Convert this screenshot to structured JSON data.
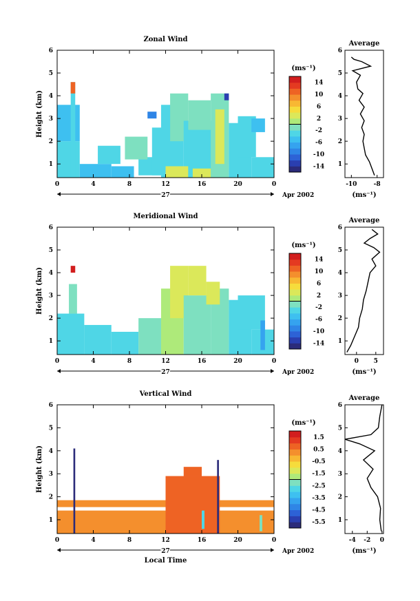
{
  "chart_data": [
    {
      "type": "heatmap",
      "title": "Zonal Wind",
      "ylabel": "Height (km)",
      "yticks": [
        "1",
        "2",
        "3",
        "4",
        "5",
        "6"
      ],
      "ylim": [
        0.4,
        6.0
      ],
      "xticks": [
        "0",
        "4",
        "8",
        "12",
        "16",
        "20",
        "0"
      ],
      "xlim": [
        0,
        24
      ],
      "day_label": "27",
      "month_label": "Apr 2002",
      "colorbar": {
        "unit": "(ms⁻¹)",
        "ticks": [
          "14",
          "10",
          "6",
          "2",
          "-2",
          "-6",
          "-10",
          "-14"
        ],
        "range": [
          -16,
          16
        ]
      },
      "cells": [
        [
          0,
          2.5,
          0.4,
          2.0,
          -4
        ],
        [
          0,
          2.5,
          2.0,
          3.6,
          -6
        ],
        [
          1.5,
          2.0,
          0.4,
          4.6,
          -3
        ],
        [
          2.5,
          6.0,
          0.4,
          1.0,
          -6
        ],
        [
          6.0,
          8.5,
          0.4,
          0.9,
          -5
        ],
        [
          4.5,
          7.0,
          1.0,
          1.8,
          -3
        ],
        [
          9.0,
          11.5,
          0.5,
          1.3,
          -4
        ],
        [
          7.5,
          10.0,
          1.2,
          2.2,
          -2
        ],
        [
          10.5,
          12.5,
          0.5,
          2.6,
          -4
        ],
        [
          11.5,
          14.0,
          0.4,
          3.6,
          -3
        ],
        [
          12.5,
          14.5,
          2.0,
          4.1,
          -2
        ],
        [
          14.0,
          17.5,
          0.4,
          2.9,
          -3
        ],
        [
          14.5,
          17.0,
          2.5,
          3.8,
          -2
        ],
        [
          17.0,
          19.0,
          0.4,
          4.1,
          -1
        ],
        [
          17.5,
          18.5,
          1.0,
          3.4,
          3
        ],
        [
          19.0,
          21.5,
          0.4,
          2.8,
          -3
        ],
        [
          20.0,
          22.0,
          1.3,
          3.1,
          -4
        ],
        [
          21.5,
          24.0,
          0.4,
          1.3,
          -3
        ],
        [
          21.5,
          23.0,
          2.4,
          3.0,
          -5
        ],
        [
          12.0,
          14.5,
          0.4,
          0.9,
          2
        ],
        [
          15.0,
          17.0,
          0.4,
          0.8,
          3
        ],
        [
          1.5,
          2.0,
          4.1,
          4.6,
          10
        ],
        [
          10.0,
          11.0,
          3.0,
          3.3,
          -10
        ],
        [
          18.5,
          19.0,
          3.8,
          4.1,
          -14
        ]
      ],
      "avg": {
        "title": "Average",
        "xticks": [
          "-10",
          "-8"
        ],
        "xlim": [
          -10.5,
          -7.5
        ],
        "xlabel": "(ms⁻¹)",
        "profile": [
          [
            -8.2,
            0.5
          ],
          [
            -8.4,
            0.8
          ],
          [
            -8.6,
            1.1
          ],
          [
            -8.9,
            1.4
          ],
          [
            -9.0,
            1.7
          ],
          [
            -9.1,
            2.0
          ],
          [
            -9.0,
            2.3
          ],
          [
            -9.2,
            2.6
          ],
          [
            -9.0,
            2.9
          ],
          [
            -9.3,
            3.2
          ],
          [
            -9.0,
            3.5
          ],
          [
            -9.4,
            3.8
          ],
          [
            -9.1,
            4.1
          ],
          [
            -9.5,
            4.3
          ],
          [
            -9.6,
            4.6
          ],
          [
            -9.3,
            4.9
          ],
          [
            -9.9,
            5.1
          ],
          [
            -8.5,
            5.3
          ],
          [
            -9.2,
            5.5
          ],
          [
            -9.8,
            5.6
          ],
          [
            -10.0,
            5.7
          ]
        ]
      }
    },
    {
      "type": "heatmap",
      "title": "Meridional Wind",
      "ylabel": "Height (km)",
      "yticks": [
        "1",
        "2",
        "3",
        "4",
        "5",
        "6"
      ],
      "ylim": [
        0.4,
        6.0
      ],
      "xticks": [
        "0",
        "4",
        "8",
        "12",
        "16",
        "20",
        "0"
      ],
      "xlim": [
        0,
        24
      ],
      "day_label": "27",
      "month_label": "Apr 2002",
      "colorbar": {
        "unit": "(ms⁻¹)",
        "ticks": [
          "14",
          "10",
          "6",
          "2",
          "-2",
          "-6",
          "-10",
          "-14"
        ],
        "range": [
          -16,
          16
        ]
      },
      "cells": [
        [
          0,
          3.0,
          0.4,
          2.2,
          -3
        ],
        [
          1.3,
          2.2,
          2.2,
          3.5,
          -1
        ],
        [
          3.0,
          6.0,
          0.4,
          1.7,
          -3
        ],
        [
          6.0,
          9.0,
          0.4,
          1.4,
          -4
        ],
        [
          9.0,
          12.0,
          0.4,
          2.0,
          -2
        ],
        [
          11.5,
          14.0,
          0.4,
          3.3,
          0
        ],
        [
          12.5,
          14.5,
          2.0,
          4.3,
          2
        ],
        [
          14.0,
          17.0,
          0.4,
          3.0,
          -1
        ],
        [
          14.5,
          16.5,
          3.0,
          4.3,
          3
        ],
        [
          17.0,
          19.0,
          0.4,
          3.3,
          -2
        ],
        [
          19.0,
          21.5,
          0.4,
          2.8,
          -3
        ],
        [
          20.0,
          23.0,
          1.5,
          3.0,
          -3
        ],
        [
          21.5,
          24.0,
          0.4,
          1.5,
          -4
        ],
        [
          1.5,
          2.0,
          4.0,
          4.3,
          14
        ],
        [
          16.5,
          18.0,
          2.6,
          3.6,
          3
        ],
        [
          22.5,
          23.0,
          0.6,
          1.9,
          -8
        ]
      ],
      "avg": {
        "title": "Average",
        "xticks": [
          "0",
          "5"
        ],
        "xlim": [
          -3,
          7
        ],
        "xlabel": "(ms⁻¹)",
        "profile": [
          [
            -2.5,
            0.5
          ],
          [
            -1.5,
            0.8
          ],
          [
            -0.5,
            1.2
          ],
          [
            0.5,
            1.6
          ],
          [
            0.8,
            2.0
          ],
          [
            1.5,
            2.4
          ],
          [
            1.8,
            2.8
          ],
          [
            2.5,
            3.2
          ],
          [
            3.0,
            3.6
          ],
          [
            3.5,
            4.0
          ],
          [
            5.0,
            4.3
          ],
          [
            4.0,
            4.6
          ],
          [
            6.0,
            4.9
          ],
          [
            4.5,
            5.1
          ],
          [
            2.0,
            5.3
          ],
          [
            3.5,
            5.5
          ],
          [
            5.5,
            5.7
          ],
          [
            4.0,
            5.9
          ]
        ]
      }
    },
    {
      "type": "heatmap",
      "title": "Vertical Wind",
      "ylabel": "Height (km)",
      "yticks": [
        "1",
        "2",
        "3",
        "4",
        "5",
        "6"
      ],
      "ylim": [
        0.4,
        6.0
      ],
      "xticks": [
        "0",
        "4",
        "8",
        "12",
        "16",
        "20",
        "0"
      ],
      "xlim": [
        0,
        24
      ],
      "day_label": "27",
      "month_label": "Apr 2002",
      "xlabel": "Local Time",
      "colorbar": {
        "unit": "(ms⁻¹)",
        "ticks": [
          "1.5",
          "0.5",
          "-0.5",
          "-1.5",
          "-2.5",
          "-3.5",
          "-4.5",
          "-5.5"
        ],
        "range": [
          -6,
          2
        ]
      },
      "cells": [
        [
          0,
          24,
          0.4,
          1.4,
          0.3
        ],
        [
          0,
          24,
          1.55,
          1.85,
          0.2
        ],
        [
          12.0,
          18.0,
          0.4,
          2.9,
          0.6
        ],
        [
          14.0,
          16.0,
          2.9,
          3.3,
          0.8
        ],
        [
          1.8,
          2.0,
          0.4,
          4.1,
          -5.8
        ],
        [
          17.7,
          17.9,
          0.4,
          3.6,
          -5.8
        ],
        [
          16.0,
          16.3,
          0.6,
          1.4,
          -3.0
        ],
        [
          22.4,
          22.7,
          0.5,
          1.2,
          -2.5
        ]
      ],
      "avg": {
        "title": "Average",
        "xticks": [
          "-4",
          "-2",
          "0"
        ],
        "xlim": [
          -5,
          0.2
        ],
        "xlabel": "(ms⁻¹)",
        "profile": [
          [
            -0.1,
            0.5
          ],
          [
            -0.3,
            1.0
          ],
          [
            -0.2,
            1.5
          ],
          [
            -0.6,
            2.0
          ],
          [
            -1.5,
            2.4
          ],
          [
            -2.0,
            2.8
          ],
          [
            -1.2,
            3.2
          ],
          [
            -2.5,
            3.6
          ],
          [
            -1.0,
            4.0
          ],
          [
            -3.0,
            4.3
          ],
          [
            -5.0,
            4.5
          ],
          [
            -1.5,
            4.7
          ],
          [
            -0.5,
            5.0
          ],
          [
            -0.3,
            5.5
          ],
          [
            0.0,
            6.0
          ]
        ]
      }
    }
  ]
}
